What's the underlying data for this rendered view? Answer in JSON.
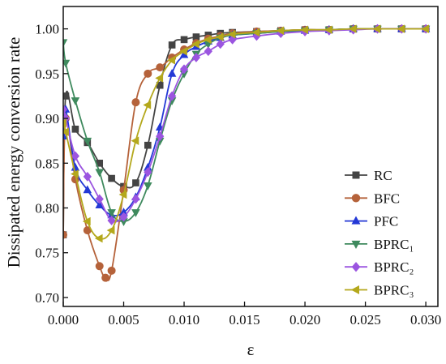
{
  "chart_data": {
    "type": "line",
    "xlabel": "ε",
    "ylabel": "Dissipated energy conversion rate",
    "xlim": [
      0,
      0.031
    ],
    "ylim": [
      0.69,
      1.025
    ],
    "xticks": [
      0.0,
      0.005,
      0.01,
      0.015,
      0.02,
      0.025,
      0.03
    ],
    "xtick_labels": [
      "0.000",
      "0.005",
      "0.010",
      "0.015",
      "0.020",
      "0.025",
      "0.030"
    ],
    "yticks": [
      0.7,
      0.75,
      0.8,
      0.85,
      0.9,
      0.95,
      1.0
    ],
    "ytick_labels": [
      "0.70",
      "0.75",
      "0.80",
      "0.85",
      "0.90",
      "0.95",
      "1.00"
    ],
    "grid": false,
    "legend_position": "bottom-right",
    "series": [
      {
        "name": "RC",
        "color": "#444444",
        "marker": "square",
        "x": [
          0.0,
          0.0002,
          0.001,
          0.002,
          0.003,
          0.004,
          0.005,
          0.006,
          0.007,
          0.008,
          0.009,
          0.01,
          0.011,
          0.012,
          0.013,
          0.014,
          0.016,
          0.018,
          0.02,
          0.022,
          0.024,
          0.026,
          0.028,
          0.03
        ],
        "y": [
          0.77,
          0.925,
          0.888,
          0.873,
          0.85,
          0.833,
          0.824,
          0.828,
          0.87,
          0.937,
          0.982,
          0.988,
          0.991,
          0.993,
          0.995,
          0.996,
          0.997,
          0.998,
          0.999,
          0.999,
          1.0,
          1.0,
          1.0,
          1.0
        ]
      },
      {
        "name": "BFC",
        "color": "#b5623a",
        "marker": "circle",
        "x": [
          0.0,
          0.0002,
          0.001,
          0.002,
          0.003,
          0.0035,
          0.004,
          0.005,
          0.006,
          0.007,
          0.008,
          0.009,
          0.01,
          0.011,
          0.012,
          0.013,
          0.014,
          0.016,
          0.018,
          0.02,
          0.022,
          0.024,
          0.026,
          0.028,
          0.03
        ],
        "y": [
          0.77,
          0.9,
          0.832,
          0.775,
          0.735,
          0.722,
          0.73,
          0.82,
          0.918,
          0.95,
          0.957,
          0.968,
          0.977,
          0.984,
          0.989,
          0.992,
          0.995,
          0.997,
          0.998,
          0.999,
          0.999,
          1.0,
          1.0,
          1.0,
          1.0
        ]
      },
      {
        "name": "PFC",
        "color": "#2439d6",
        "marker": "triangle-up",
        "x": [
          0.0,
          0.0002,
          0.001,
          0.002,
          0.003,
          0.004,
          0.005,
          0.006,
          0.007,
          0.008,
          0.009,
          0.01,
          0.011,
          0.012,
          0.013,
          0.014,
          0.016,
          0.018,
          0.02,
          0.022,
          0.024,
          0.026,
          0.028,
          0.03
        ],
        "y": [
          0.88,
          0.91,
          0.845,
          0.82,
          0.803,
          0.792,
          0.795,
          0.812,
          0.845,
          0.89,
          0.95,
          0.971,
          0.98,
          0.986,
          0.99,
          0.993,
          0.995,
          0.997,
          0.998,
          0.999,
          1.0,
          1.0,
          1.0,
          1.0
        ]
      },
      {
        "name": "BPRC₁",
        "color": "#3f8a5e",
        "marker": "triangle-down",
        "x": [
          0.0,
          0.0002,
          0.001,
          0.002,
          0.003,
          0.004,
          0.005,
          0.006,
          0.007,
          0.008,
          0.009,
          0.01,
          0.011,
          0.012,
          0.013,
          0.014,
          0.016,
          0.018,
          0.02,
          0.022,
          0.024,
          0.026,
          0.028,
          0.03
        ],
        "y": [
          0.985,
          0.962,
          0.92,
          0.875,
          0.84,
          0.795,
          0.785,
          0.795,
          0.825,
          0.875,
          0.92,
          0.95,
          0.972,
          0.983,
          0.99,
          0.993,
          0.995,
          0.997,
          0.998,
          0.999,
          1.0,
          1.0,
          1.0,
          1.0
        ]
      },
      {
        "name": "BPRC₂",
        "color": "#9b55e0",
        "marker": "diamond",
        "x": [
          0.0,
          0.0002,
          0.001,
          0.002,
          0.003,
          0.004,
          0.005,
          0.006,
          0.007,
          0.008,
          0.009,
          0.01,
          0.011,
          0.012,
          0.013,
          0.014,
          0.016,
          0.018,
          0.02,
          0.022,
          0.024,
          0.026,
          0.028,
          0.03
        ],
        "y": [
          0.91,
          0.9,
          0.858,
          0.835,
          0.81,
          0.786,
          0.79,
          0.81,
          0.84,
          0.88,
          0.925,
          0.955,
          0.968,
          0.975,
          0.983,
          0.988,
          0.992,
          0.995,
          0.997,
          0.998,
          0.999,
          1.0,
          1.0,
          1.0
        ]
      },
      {
        "name": "BPRC₃",
        "color": "#b4a81c",
        "marker": "triangle-left",
        "x": [
          0.0,
          0.0002,
          0.001,
          0.002,
          0.003,
          0.004,
          0.005,
          0.006,
          0.007,
          0.008,
          0.009,
          0.01,
          0.011,
          0.012,
          0.013,
          0.014,
          0.016,
          0.018,
          0.02,
          0.022,
          0.024,
          0.026,
          0.028,
          0.03
        ],
        "y": [
          0.895,
          0.885,
          0.838,
          0.785,
          0.766,
          0.775,
          0.815,
          0.875,
          0.915,
          0.945,
          0.965,
          0.975,
          0.983,
          0.988,
          0.991,
          0.994,
          0.996,
          0.998,
          0.999,
          0.999,
          1.0,
          1.0,
          1.0,
          1.0
        ]
      }
    ]
  }
}
